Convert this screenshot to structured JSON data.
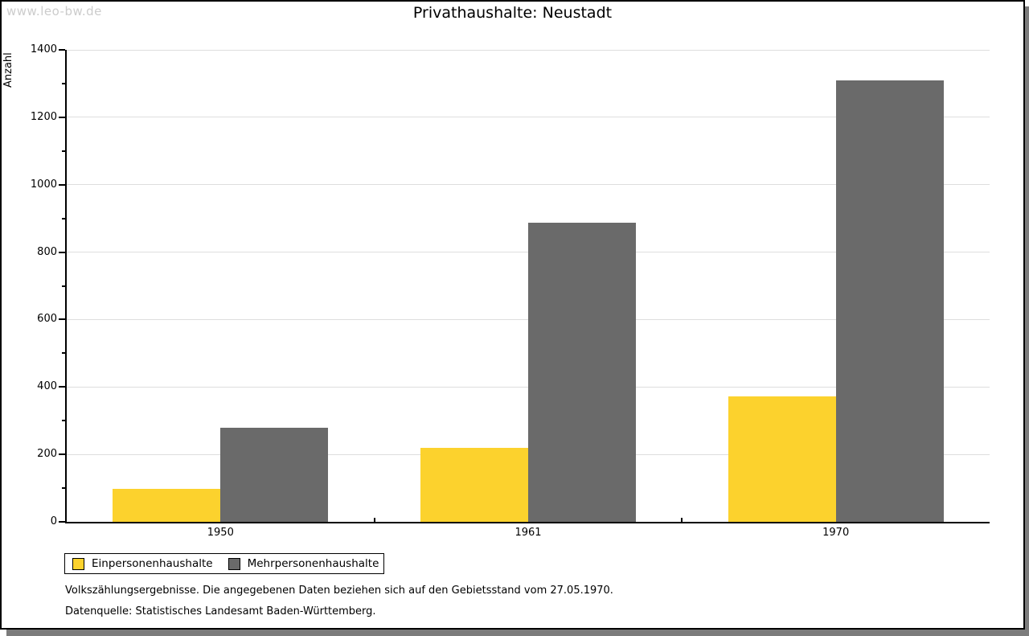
{
  "watermark": "www.leo-bw.de",
  "title": "Privathaushalte: Neustadt",
  "chart_data": {
    "type": "bar",
    "title": "Privathaushalte: Neustadt",
    "categories": [
      "1950",
      "1961",
      "1970"
    ],
    "series": [
      {
        "name": "Einpersonenhaushalte",
        "color": "#fcd22d",
        "values": [
          98,
          220,
          373
        ]
      },
      {
        "name": "Mehrpersonenhaushalte",
        "color": "#6a6a6a",
        "values": [
          280,
          888,
          1310
        ]
      }
    ],
    "xlabel": "",
    "ylabel": "Anzahl",
    "ylim": [
      0,
      1400
    ],
    "ytick_step": 200,
    "minor_tick_step": 100,
    "grid": true,
    "legend_position": "bottom-left"
  },
  "footnotes": {
    "line1": "Volkszählungsergebnisse. Die angegebenen Daten beziehen sich auf den Gebietsstand vom 27.05.1970.",
    "line2": "Datenquelle: Statistisches Landesamt Baden-Württemberg."
  },
  "colors": {
    "bar_yellow": "#fcd22d",
    "bar_gray": "#6a6a6a",
    "gridline": "#dedede",
    "axis": "#000000",
    "watermark_text": "#cccccc",
    "window_shadow": "#7c7c7c",
    "window_border": "#000000"
  }
}
